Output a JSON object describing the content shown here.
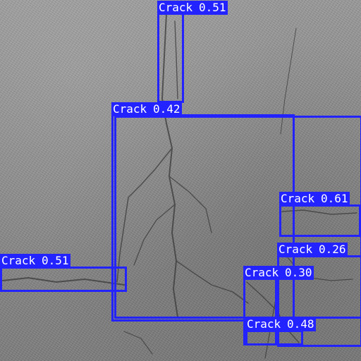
{
  "image": {
    "subject": "asphalt road surface with cracks",
    "box_color": "#2323ff",
    "label_text_color": "#ffffff"
  },
  "detections": [
    {
      "label": "Crack",
      "score": "0.51"
    },
    {
      "label": "Crack",
      "score": "0.42"
    },
    {
      "label": "Crack",
      "score": "0.61"
    },
    {
      "label": "Crack",
      "score": "0.26"
    },
    {
      "label": "Crack",
      "score": "0.51"
    },
    {
      "label": "Crack",
      "score": "0.30"
    },
    {
      "label": "Crack",
      "score": "0.48"
    }
  ]
}
